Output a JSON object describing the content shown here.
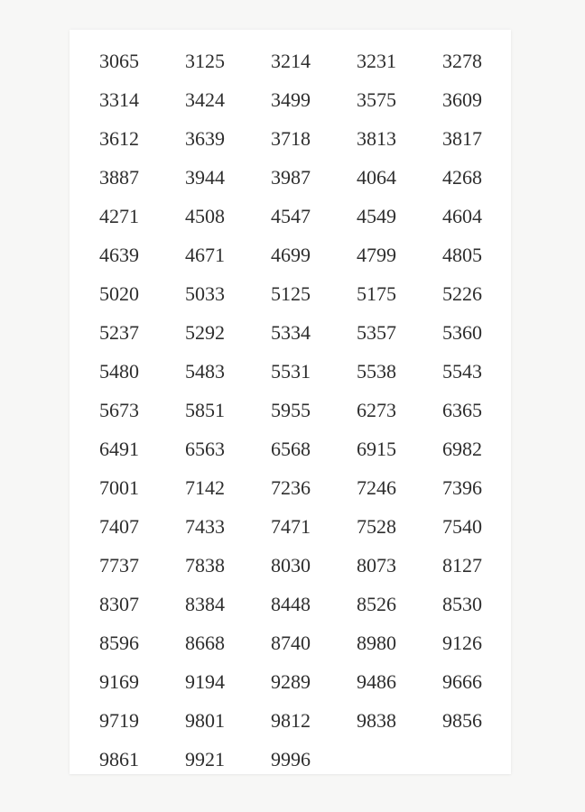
{
  "page": {
    "background_color": "#f7f7f6",
    "sheet_color": "#ffffff",
    "text_color": "#2e2e2e",
    "columns": 5,
    "row_count": 19,
    "rows": [
      [
        "3065",
        "3125",
        "3214",
        "3231",
        "3278"
      ],
      [
        "3314",
        "3424",
        "3499",
        "3575",
        "3609"
      ],
      [
        "3612",
        "3639",
        "3718",
        "3813",
        "3817"
      ],
      [
        "3887",
        "3944",
        "3987",
        "4064",
        "4268"
      ],
      [
        "4271",
        "4508",
        "4547",
        "4549",
        "4604"
      ],
      [
        "4639",
        "4671",
        "4699",
        "4799",
        "4805"
      ],
      [
        "5020",
        "5033",
        "5125",
        "5175",
        "5226"
      ],
      [
        "5237",
        "5292",
        "5334",
        "5357",
        "5360"
      ],
      [
        "5480",
        "5483",
        "5531",
        "5538",
        "5543"
      ],
      [
        "5673",
        "5851",
        "5955",
        "6273",
        "6365"
      ],
      [
        "6491",
        "6563",
        "6568",
        "6915",
        "6982"
      ],
      [
        "7001",
        "7142",
        "7236",
        "7246",
        "7396"
      ],
      [
        "7407",
        "7433",
        "7471",
        "7528",
        "7540"
      ],
      [
        "7737",
        "7838",
        "8030",
        "8073",
        "8127"
      ],
      [
        "8307",
        "8384",
        "8448",
        "8526",
        "8530"
      ],
      [
        "8596",
        "8668",
        "8740",
        "8980",
        "9126"
      ],
      [
        "9169",
        "9194",
        "9289",
        "9486",
        "9666"
      ],
      [
        "9719",
        "9801",
        "9812",
        "9838",
        "9856"
      ],
      [
        "9861",
        "9921",
        "9996"
      ]
    ]
  }
}
